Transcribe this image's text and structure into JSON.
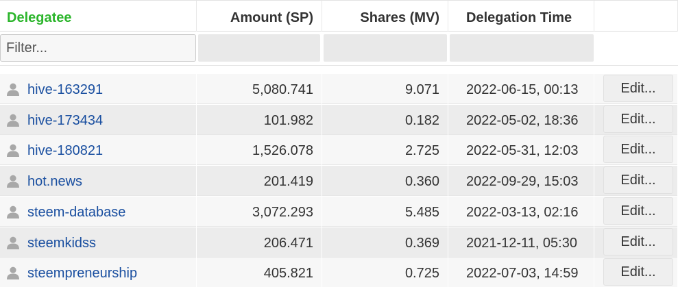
{
  "columns": {
    "delegatee": "Delegatee",
    "amount": "Amount (SP)",
    "shares": "Shares (MV)",
    "time": "Delegation Time"
  },
  "filter": {
    "placeholder": "Filter...",
    "value": ""
  },
  "colors": {
    "sorted_header": "#2bb52b",
    "link": "#1a4fa0"
  },
  "icons": {
    "row_avatar": "user-avatar-icon"
  },
  "rows": [
    {
      "delegatee": "hive-163291",
      "amount": "5,080.741",
      "shares": "9.071",
      "time": "2022-06-15, 00:13",
      "action": "Edit..."
    },
    {
      "delegatee": "hive-173434",
      "amount": "101.982",
      "shares": "0.182",
      "time": "2022-05-02, 18:36",
      "action": "Edit..."
    },
    {
      "delegatee": "hive-180821",
      "amount": "1,526.078",
      "shares": "2.725",
      "time": "2022-05-31, 12:03",
      "action": "Edit..."
    },
    {
      "delegatee": "hot.news",
      "amount": "201.419",
      "shares": "0.360",
      "time": "2022-09-29, 15:03",
      "action": "Edit..."
    },
    {
      "delegatee": "steem-database",
      "amount": "3,072.293",
      "shares": "5.485",
      "time": "2022-03-13, 02:16",
      "action": "Edit..."
    },
    {
      "delegatee": "steemkidss",
      "amount": "206.471",
      "shares": "0.369",
      "time": "2021-12-11, 05:30",
      "action": "Edit..."
    },
    {
      "delegatee": "steempreneurship",
      "amount": "405.821",
      "shares": "0.725",
      "time": "2022-07-03, 14:59",
      "action": "Edit..."
    }
  ]
}
